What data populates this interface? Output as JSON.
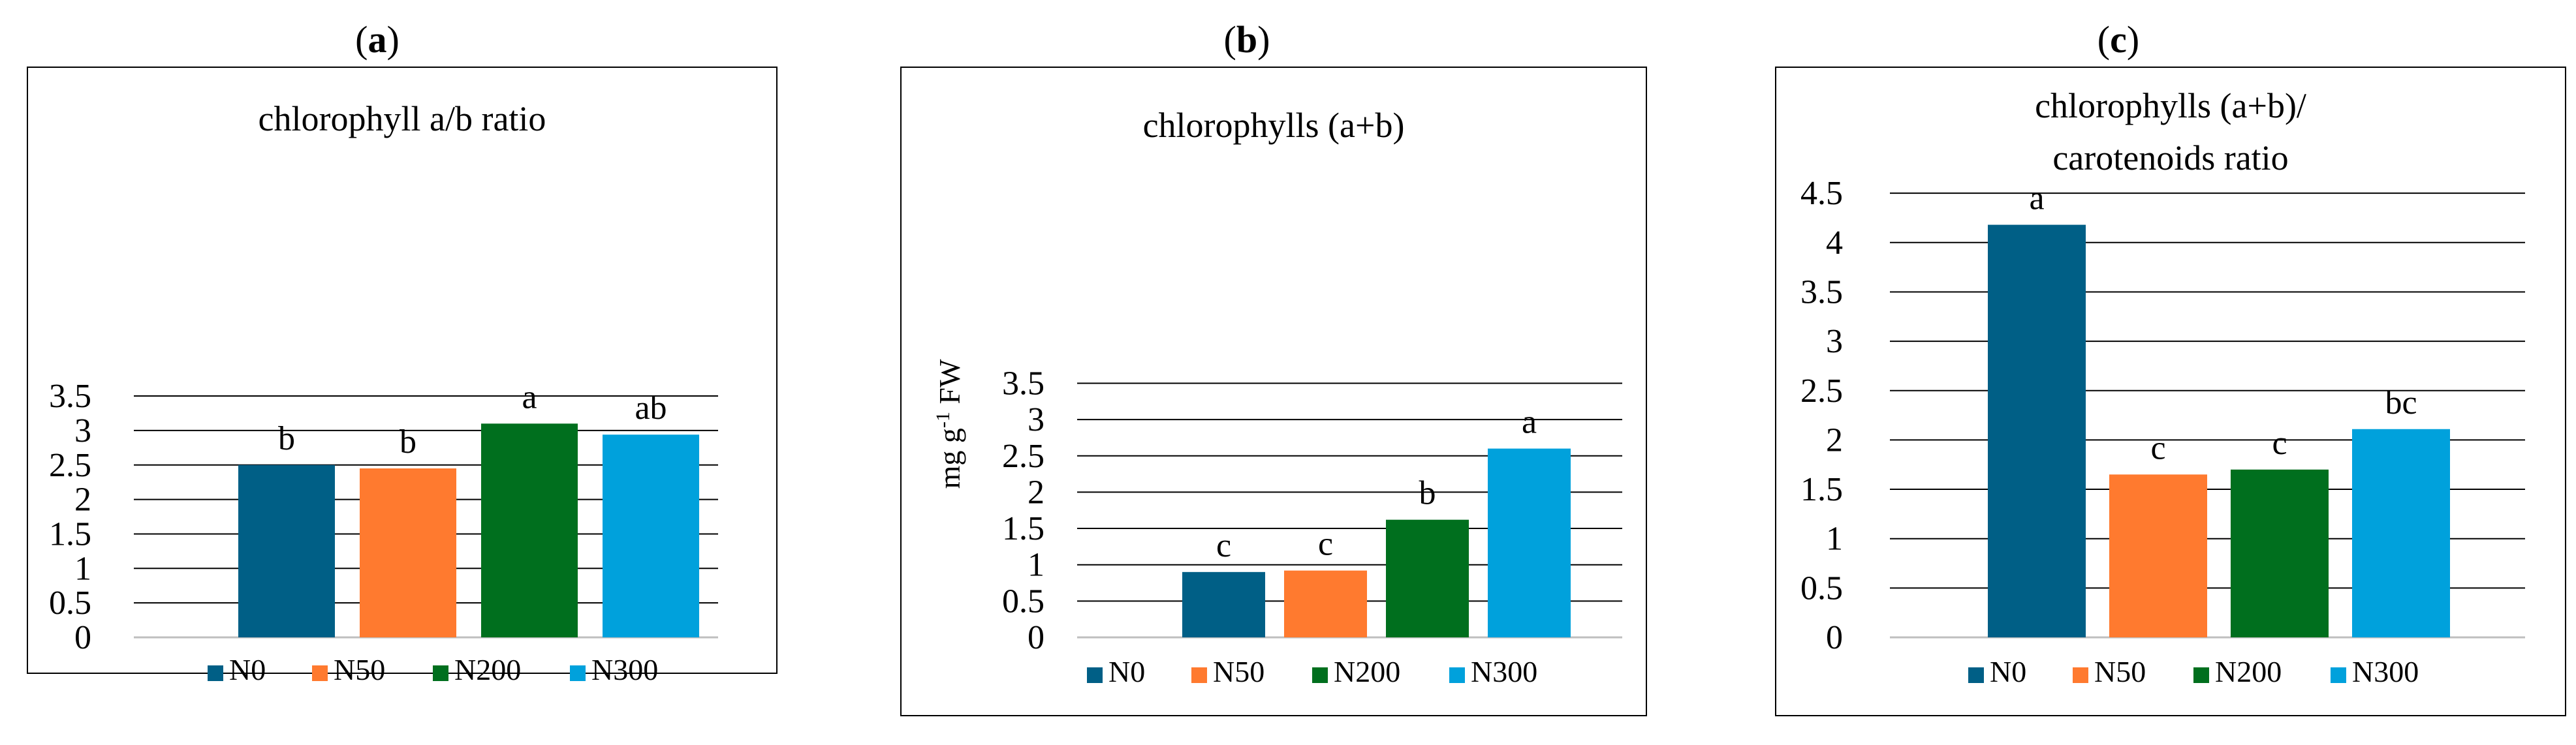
{
  "figure": {
    "panel_labels": [
      "a",
      "b",
      "c"
    ]
  },
  "legend_entries": [
    "N0",
    "N50",
    "N200",
    "N300"
  ],
  "colors": {
    "N0": "#005F86",
    "N50": "#FF7A2F",
    "N200": "#006F1E",
    "N300": "#00A1DC",
    "gridline": "#000000",
    "frame": "#000000"
  },
  "chart_data": [
    {
      "type": "bar",
      "panel": "a",
      "title": "chlorophyll a/b ratio",
      "title_lines": [
        "chlorophyll a/b ratio"
      ],
      "ylabel": "",
      "categories": [
        "N0",
        "N50",
        "N200",
        "N300"
      ],
      "values": [
        2.5,
        2.45,
        3.1,
        2.94
      ],
      "significance_letters": [
        "b",
        "b",
        "a",
        "ab"
      ],
      "ylim": [
        0,
        3.5
      ],
      "yticks": [
        0,
        0.5,
        1,
        1.5,
        2,
        2.5,
        3,
        3.5
      ],
      "ytick_labels": [
        "0",
        "0.5",
        "1",
        "1.5",
        "2",
        "2.5",
        "3",
        "3.5"
      ],
      "grid": true,
      "legend_position": "bottom"
    },
    {
      "type": "bar",
      "panel": "b",
      "title": "chlorophylls (a+b)",
      "title_lines": [
        "chlorophylls (a+b)"
      ],
      "ylabel": "mg g-1 FW",
      "ylabel_parts": [
        "mg g",
        "-1",
        " FW"
      ],
      "categories": [
        "N0",
        "N50",
        "N200",
        "N300"
      ],
      "values": [
        0.9,
        0.92,
        1.62,
        2.6
      ],
      "significance_letters": [
        "c",
        "c",
        "b",
        "a"
      ],
      "ylim": [
        0,
        3.5
      ],
      "yticks": [
        0,
        0.5,
        1,
        1.5,
        2,
        2.5,
        3,
        3.5
      ],
      "ytick_labels": [
        "0",
        "0.5",
        "1",
        "1.5",
        "2",
        "2.5",
        "3",
        "3.5"
      ],
      "grid": true,
      "legend_position": "bottom"
    },
    {
      "type": "bar",
      "panel": "c",
      "title": "chlorophylls (a+b)/ carotenoids ratio",
      "title_lines": [
        "chlorophylls (a+b)/",
        "carotenoids ratio"
      ],
      "ylabel": "",
      "categories": [
        "N0",
        "N50",
        "N200",
        "N300"
      ],
      "values": [
        4.18,
        1.65,
        1.7,
        2.11
      ],
      "significance_letters": [
        "a",
        "c",
        "c",
        "bc"
      ],
      "ylim": [
        0,
        4.5
      ],
      "yticks": [
        0,
        0.5,
        1,
        1.5,
        2,
        2.5,
        3,
        3.5,
        4,
        4.5
      ],
      "ytick_labels": [
        "0",
        "0.5",
        "1",
        "1.5",
        "2",
        "2.5",
        "3",
        "3.5",
        "4",
        "4.5"
      ],
      "grid": true,
      "legend_position": "bottom"
    }
  ]
}
